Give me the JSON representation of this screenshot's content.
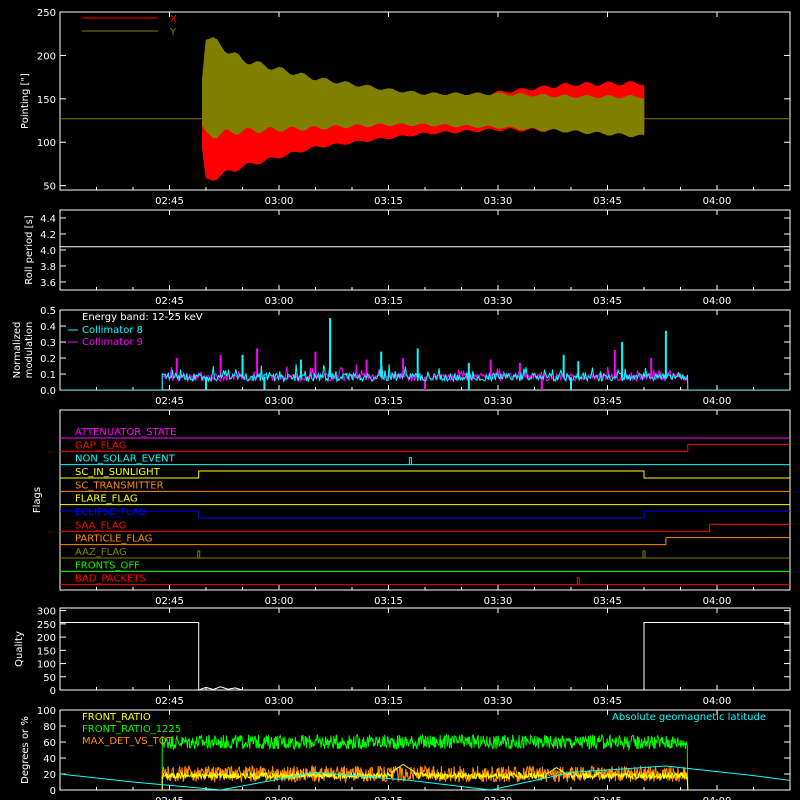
{
  "colors": {
    "background": "#000000",
    "axes": "#ffffff",
    "pointing_x": "#ff0000",
    "pointing_y": "#808000",
    "roll": "#ffffff",
    "collimator8": "#00ffff",
    "collimator9": "#ff00ff",
    "quality": "#ffffff",
    "front_ratio": "#ffff00",
    "front_ratio_1225": "#00ff00",
    "max_det_vs_tot": "#ff8c00",
    "geomag": "#00ffff"
  },
  "chart_data": [
    {
      "id": "pointing",
      "type": "line",
      "ylabel": "Pointing [\"]",
      "xlim": [
        "02:30",
        "04:10"
      ],
      "ylim": [
        45,
        250
      ],
      "xticks": [
        "02:45",
        "03:00",
        "03:15",
        "03:30",
        "03:45",
        "04:00"
      ],
      "yticks": [
        50,
        100,
        150,
        200,
        250
      ],
      "legend": "top-left",
      "flat_before": "02:49",
      "flat_after": "03:50",
      "flat_value": 127,
      "series": [
        {
          "name": "X",
          "color": "#ff0000",
          "envelope_time": [
            "02:49",
            "02:50",
            "02:55",
            "03:05",
            "03:15",
            "03:20",
            "03:30",
            "03:40",
            "03:50"
          ],
          "envelope_min": [
            127,
            50,
            68,
            92,
            103,
            108,
            112,
            110,
            106
          ],
          "envelope_max": [
            127,
            142,
            137,
            133,
            139,
            145,
            160,
            170,
            172
          ]
        },
        {
          "name": "Y",
          "color": "#808000",
          "envelope_time": [
            "02:49",
            "02:50",
            "02:55",
            "03:05",
            "03:15",
            "03:20",
            "03:30",
            "03:40",
            "03:50"
          ],
          "envelope_min": [
            127,
            100,
            108,
            113,
            118,
            118,
            115,
            110,
            104
          ],
          "envelope_max": [
            127,
            230,
            200,
            177,
            163,
            158,
            158,
            155,
            155
          ]
        }
      ]
    },
    {
      "id": "roll",
      "type": "line",
      "ylabel": "Roll period [s]",
      "xlim": [
        "02:30",
        "04:10"
      ],
      "ylim": [
        3.5,
        4.5
      ],
      "xticks": [
        "02:45",
        "03:00",
        "03:15",
        "03:30",
        "03:45",
        "04:00"
      ],
      "yticks": [
        "3.6",
        "3.8",
        "4.0",
        "4.2",
        "4.4"
      ],
      "series": [
        {
          "name": "",
          "color": "#ffffff",
          "x": [
            "02:30",
            "04:10"
          ],
          "y": [
            4.04,
            4.04
          ]
        }
      ]
    },
    {
      "id": "modulation",
      "type": "line",
      "ylabel": "Normalized",
      "ylabel2": "modulation",
      "xlim": [
        "02:30",
        "04:10"
      ],
      "ylim": [
        0,
        0.5
      ],
      "xticks": [
        "02:45",
        "03:00",
        "03:15",
        "03:30",
        "03:45",
        "04:00"
      ],
      "yticks": [
        "0.0",
        "0.1",
        "0.2",
        "0.3",
        "0.4",
        "0.5"
      ],
      "legend": "top-left",
      "annotation": "Energy band: 12-25 keV",
      "active_range": [
        "02:44",
        "03:56"
      ],
      "baseline": 0.08,
      "series": [
        {
          "name": "Collimator 8",
          "color": "#00ffff",
          "spikes": [
            [
              "02:55",
              0.22
            ],
            [
              "03:03",
              0.19
            ],
            [
              "03:07",
              0.45
            ],
            [
              "03:14",
              0.24
            ],
            [
              "03:19",
              0.26
            ],
            [
              "03:39",
              0.22
            ],
            [
              "03:47",
              0.3
            ],
            [
              "03:53",
              0.37
            ],
            [
              "03:41",
              0.18
            ],
            [
              "03:26",
              0.17
            ]
          ],
          "dips": [
            "02:50",
            "02:58",
            "03:26",
            "03:40"
          ]
        },
        {
          "name": "Collimator 9",
          "color": "#ff00ff",
          "spikes": [
            [
              "02:46",
              0.2
            ],
            [
              "02:52",
              0.22
            ],
            [
              "02:57",
              0.26
            ],
            [
              "03:05",
              0.24
            ],
            [
              "03:12",
              0.19
            ],
            [
              "03:17",
              0.2
            ],
            [
              "03:29",
              0.19
            ],
            [
              "03:33",
              0.17
            ],
            [
              "03:46",
              0.25
            ],
            [
              "03:51",
              0.2
            ]
          ],
          "dips": [
            "03:20",
            "03:36"
          ]
        }
      ]
    },
    {
      "id": "flags",
      "type": "line",
      "ylabel": "Flags",
      "xlim": [
        "02:30",
        "04:10"
      ],
      "xticks": [
        "02:45",
        "03:00",
        "03:15",
        "03:30",
        "03:45",
        "04:00"
      ],
      "flags": [
        {
          "label": "ATTENUATOR_STATE",
          "color": "#ff00ff",
          "changes": []
        },
        {
          "label": "GAP_FLAG",
          "color": "#ff0000",
          "changes": [
            [
              "03:56",
              1
            ]
          ]
        },
        {
          "label": "NON_SOLAR_EVENT",
          "color": "#00ffff",
          "pulses": [
            "03:18"
          ]
        },
        {
          "label": "SC_IN_SUNLIGHT",
          "color": "#ffff00",
          "changes": [
            [
              "02:49",
              1
            ],
            [
              "03:50",
              0
            ]
          ]
        },
        {
          "label": "SC_TRANSMITTER",
          "color": "#ff8c00",
          "changes": []
        },
        {
          "label": "FLARE_FLAG",
          "color": "#ffff00",
          "changes": []
        },
        {
          "label": "ECLIPSE_FLAG",
          "color": "#0000ff",
          "changes": [
            [
              "02:49",
              0
            ],
            [
              "03:50",
              1
            ]
          ],
          "start_high": true
        },
        {
          "label": "SAA_FLAG",
          "color": "#ff0000",
          "changes": [
            [
              "03:59",
              1
            ]
          ]
        },
        {
          "label": "PARTICLE_FLAG",
          "color": "#ff8c00",
          "changes": [
            [
              "03:53",
              1
            ]
          ]
        },
        {
          "label": "AAZ_FLAG",
          "color": "#808000",
          "pulses": [
            "02:49",
            "03:50"
          ]
        },
        {
          "label": "FRONTS_OFF",
          "color": "#00ff00",
          "changes": []
        },
        {
          "label": "BAD_PACKETS",
          "color": "#ff0000",
          "pulses": [
            "03:41"
          ]
        }
      ]
    },
    {
      "id": "quality",
      "type": "line",
      "ylabel": "Quality",
      "xlim": [
        "02:30",
        "04:10"
      ],
      "ylim": [
        0,
        310
      ],
      "xticks": [
        "02:45",
        "03:00",
        "03:15",
        "03:30",
        "03:45",
        "04:00"
      ],
      "yticks": [
        0,
        50,
        100,
        150,
        200,
        250,
        300
      ],
      "series": [
        {
          "name": "",
          "color": "#ffffff",
          "x": [
            "02:30",
            "02:48",
            "02:49",
            "02:49",
            "02:50",
            "02:51",
            "02:52",
            "02:53",
            "02:54",
            "02:55",
            "03:50",
            "03:50",
            "04:10"
          ],
          "y": [
            255,
            255,
            255,
            0,
            10,
            2,
            12,
            3,
            8,
            0,
            0,
            255,
            255
          ]
        }
      ]
    },
    {
      "id": "geomag",
      "type": "line",
      "ylabel": "Degrees or %",
      "xlim": [
        "02:30",
        "04:10"
      ],
      "ylim": [
        0,
        100
      ],
      "xticks": [
        "02:45",
        "03:00",
        "03:15",
        "03:30",
        "03:45",
        "04:00"
      ],
      "yticks": [
        0,
        20,
        40,
        60,
        80,
        100
      ],
      "legend": "top-left",
      "annotation": "Absolute geomagnetic latitude",
      "active_range": [
        "02:44",
        "03:56"
      ],
      "series": [
        {
          "name": "FRONT_RATIO",
          "color": "#ffff00",
          "level": 18,
          "noise": 4,
          "bumps": [
            [
              "03:17",
              32
            ],
            [
              "03:38",
              28
            ]
          ]
        },
        {
          "name": "FRONT_RATIO_1225",
          "color": "#00ff00",
          "level": 60,
          "noise": 9
        },
        {
          "name": "MAX_DET_VS_TOT",
          "color": "#ff8c00",
          "level": 20,
          "noise": 10
        },
        {
          "name": "",
          "color": "#00ffff",
          "curve": {
            "x": [
              "02:30",
              "02:40",
              "02:52",
              "03:05",
              "03:18",
              "03:29",
              "03:40",
              "03:53",
              "04:05",
              "04:10"
            ],
            "y": [
              20,
              10,
              0,
              22,
              12,
              0,
              22,
              30,
              18,
              12
            ]
          }
        }
      ]
    }
  ]
}
